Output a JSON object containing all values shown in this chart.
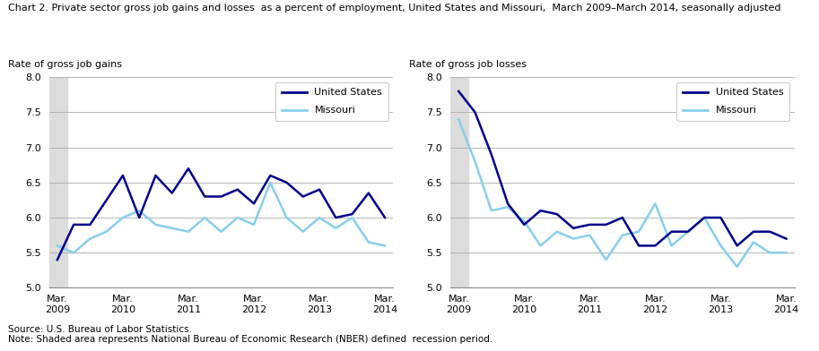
{
  "title": "Chart 2. Private sector gross job gains and losses  as a percent of employment, United States and Missouri,  March 2009–March 2014, seasonally adjusted",
  "left_ylabel": "Rate of gross job gains",
  "right_ylabel": "Rate of gross job losses",
  "ylim": [
    5.0,
    8.0
  ],
  "yticks": [
    5.0,
    5.5,
    6.0,
    6.5,
    7.0,
    7.5,
    8.0
  ],
  "x_labels": [
    "Mar.\n2009",
    "Mar.\n2010",
    "Mar.\n2011",
    "Mar.\n2012",
    "Mar.\n2013",
    "Mar.\n2014"
  ],
  "x_positions": [
    0,
    4,
    8,
    12,
    16,
    20
  ],
  "us_color": "#00008B",
  "mo_color": "#87CEEB",
  "gains_us": [
    5.4,
    5.9,
    5.9,
    6.25,
    6.6,
    6.0,
    6.6,
    6.35,
    6.7,
    6.3,
    6.3,
    6.4,
    6.2,
    6.6,
    6.5,
    6.3,
    6.4,
    6.0,
    6.05,
    6.35,
    6.0
  ],
  "gains_mo": [
    5.6,
    5.5,
    5.7,
    5.8,
    6.0,
    6.1,
    5.9,
    5.85,
    5.8,
    6.0,
    5.8,
    6.0,
    5.9,
    6.5,
    6.0,
    5.8,
    6.0,
    5.85,
    6.0,
    5.65,
    5.6
  ],
  "losses_us": [
    7.8,
    7.5,
    6.9,
    6.2,
    5.9,
    6.1,
    6.05,
    5.85,
    5.9,
    5.9,
    6.0,
    5.6,
    5.6,
    5.8,
    5.8,
    6.0,
    6.0,
    5.6,
    5.8,
    5.8,
    5.7
  ],
  "losses_mo": [
    7.4,
    6.8,
    6.1,
    6.15,
    5.95,
    5.6,
    5.8,
    5.7,
    5.75,
    5.4,
    5.75,
    5.8,
    6.2,
    5.6,
    5.8,
    6.0,
    5.6,
    5.3,
    5.65,
    5.5,
    5.5
  ],
  "source_text": "Source: U.S. Bureau of Labor Statistics.\nNote: Shaded area represents National Bureau of Economic Research (NBER) defined  recession period.",
  "legend_us_label": "United States",
  "legend_mo_label": "Missouri",
  "recession_color": "#DCDCDC"
}
